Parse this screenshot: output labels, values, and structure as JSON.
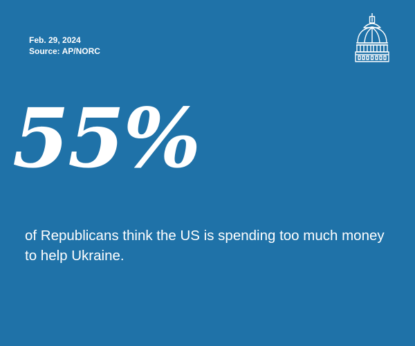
{
  "meta": {
    "date": "Feb. 29, 2024",
    "source": "Source: AP/NORC"
  },
  "logo": {
    "icon": "capitol-dome-icon"
  },
  "stat": {
    "value": "55%"
  },
  "statement": {
    "text": "of Republicans think the US is spending too much money to help Ukraine."
  },
  "colors": {
    "background": "#1f72a8",
    "text": "#ffffff"
  }
}
